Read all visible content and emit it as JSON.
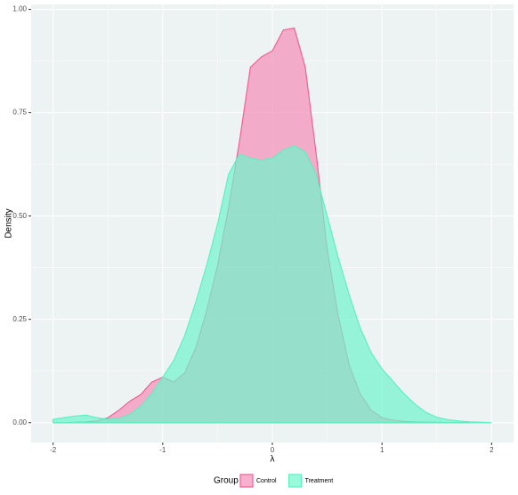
{
  "chart_data": {
    "type": "area",
    "x_label": "λ",
    "y_label": "Density",
    "legend_title": "Group",
    "x": [
      -2,
      -1.9,
      -1.8,
      -1.7,
      -1.6,
      -1.5,
      -1.4,
      -1.3,
      -1.2,
      -1.1,
      -1,
      -0.9,
      -0.8,
      -0.7,
      -0.6,
      -0.5,
      -0.4,
      -0.3,
      -0.2,
      -0.1,
      0,
      0.1,
      0.2,
      0.3,
      0.4,
      0.5,
      0.6,
      0.7,
      0.8,
      0.9,
      1,
      1.1,
      1.2,
      1.3,
      1.4,
      1.5,
      1.6,
      1.7,
      1.8,
      1.9,
      2
    ],
    "series": [
      {
        "name": "Control",
        "color": "#f06292",
        "fill": "#f48fb8",
        "values": [
          0,
          0,
          0.001,
          0.002,
          0.004,
          0.012,
          0.03,
          0.052,
          0.068,
          0.098,
          0.11,
          0.098,
          0.12,
          0.18,
          0.27,
          0.38,
          0.52,
          0.68,
          0.86,
          0.885,
          0.9,
          0.95,
          0.955,
          0.86,
          0.65,
          0.42,
          0.26,
          0.14,
          0.07,
          0.03,
          0.012,
          0.006,
          0.003,
          0.002,
          0.001,
          0.001,
          0,
          0,
          0,
          null,
          null
        ]
      },
      {
        "name": "Treatment",
        "color": "#5ef0c0",
        "fill": "#6ff5cc",
        "values": [
          0.008,
          0.012,
          0.016,
          0.018,
          0.012,
          0.008,
          0.01,
          0.02,
          0.04,
          0.07,
          0.11,
          0.15,
          0.21,
          0.29,
          0.38,
          0.48,
          0.6,
          0.65,
          0.64,
          0.635,
          0.64,
          0.66,
          0.67,
          0.655,
          0.6,
          0.5,
          0.4,
          0.31,
          0.23,
          0.17,
          0.13,
          0.1,
          0.07,
          0.045,
          0.025,
          0.013,
          0.007,
          0.004,
          0.002,
          0.001,
          0
        ]
      }
    ],
    "xlim": [
      -2.2,
      2.2
    ],
    "ylim": [
      -0.048,
      1.012
    ],
    "xticks": [
      -2,
      -1,
      0,
      1,
      2
    ],
    "yticks": [
      {
        "value": 0,
        "label": "0.00"
      },
      {
        "value": 0.25,
        "label": "0.25"
      },
      {
        "value": 0.5,
        "label": "0.50"
      },
      {
        "value": 0.75,
        "label": "0.75"
      },
      {
        "value": 1,
        "label": "1.00"
      }
    ],
    "grid": true,
    "legend": "bottom"
  }
}
